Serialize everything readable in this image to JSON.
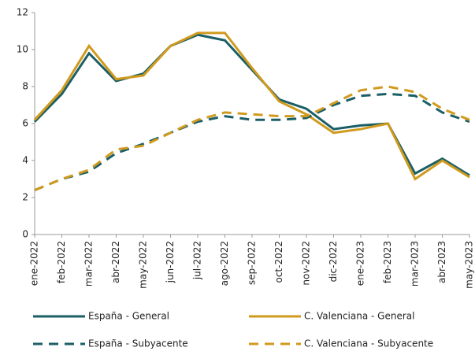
{
  "chart_data": {
    "type": "line",
    "categories": [
      "ene-2022",
      "feb-2022",
      "mar-2022",
      "abr-2022",
      "may-2022",
      "jun-2022",
      "jul-2022",
      "ago-2022",
      "sep-2022",
      "oct-2022",
      "nov-2022",
      "dic-2022",
      "ene-2023",
      "feb-2023",
      "mar-2023",
      "abr-2023",
      "may-2023"
    ],
    "series": [
      {
        "name": "España - General",
        "color": "#1b5f66",
        "dashed": false,
        "values": [
          6.1,
          7.6,
          9.8,
          8.3,
          8.7,
          10.2,
          10.8,
          10.5,
          8.9,
          7.3,
          6.8,
          5.7,
          5.9,
          6.0,
          3.3,
          4.1,
          3.2
        ]
      },
      {
        "name": "C. Valenciana - General",
        "color": "#d09a1e",
        "dashed": false,
        "values": [
          6.2,
          7.8,
          10.2,
          8.4,
          8.6,
          10.2,
          10.9,
          10.9,
          9.0,
          7.2,
          6.5,
          5.5,
          5.7,
          6.0,
          3.0,
          4.0,
          3.1
        ]
      },
      {
        "name": "España - Subyacente",
        "color": "#1b5f66",
        "dashed": true,
        "values": [
          2.4,
          3.0,
          3.4,
          4.4,
          4.9,
          5.5,
          6.1,
          6.4,
          6.2,
          6.2,
          6.3,
          7.0,
          7.5,
          7.6,
          7.5,
          6.6,
          6.1
        ]
      },
      {
        "name": "C. Valenciana - Subyacente",
        "color": "#d09a1e",
        "dashed": true,
        "values": [
          2.4,
          3.0,
          3.5,
          4.6,
          4.8,
          5.5,
          6.2,
          6.6,
          6.5,
          6.4,
          6.4,
          7.1,
          7.8,
          8.0,
          7.7,
          6.8,
          6.2
        ]
      }
    ],
    "ylim": [
      0,
      12
    ],
    "yticks": [
      0,
      2,
      4,
      6,
      8,
      10,
      12
    ],
    "grid": false,
    "legend": "bottom"
  }
}
